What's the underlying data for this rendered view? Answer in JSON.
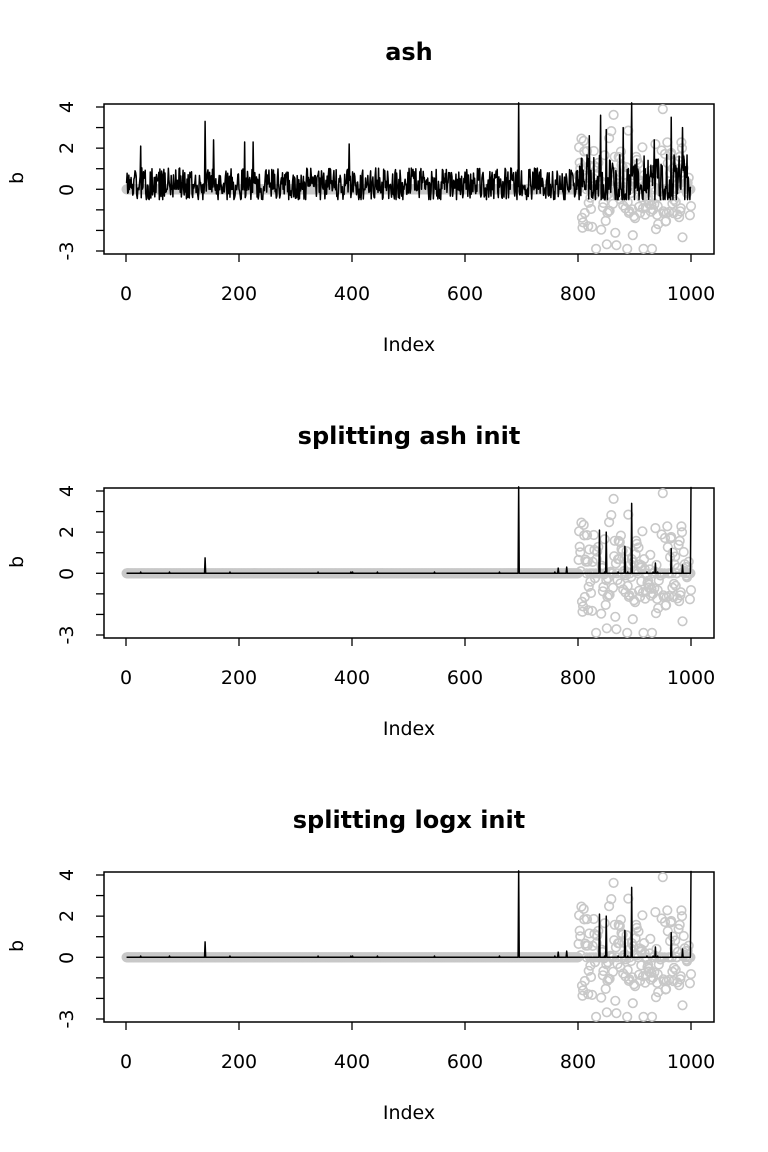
{
  "colors": {
    "line": "#000000",
    "points": "#c8c8c8",
    "frame": "#000000"
  },
  "chart_data": [
    {
      "type": "line",
      "title": "ash",
      "xlabel": "Index",
      "ylabel": "b",
      "xlim": [
        0,
        1000
      ],
      "ylim": [
        -3,
        4
      ],
      "x_ticks": [
        "0",
        "200",
        "400",
        "600",
        "800",
        "1000"
      ],
      "y_ticks": [
        "-3",
        "0",
        "2",
        "4"
      ],
      "line_pattern": "dense-noise",
      "spikes": [
        {
          "x": 140,
          "y": 3.3
        },
        {
          "x": 26,
          "y": 2.1
        },
        {
          "x": 155,
          "y": 2.4
        },
        {
          "x": 210,
          "y": 2.3
        },
        {
          "x": 225,
          "y": 2.3
        },
        {
          "x": 395,
          "y": 2.2
        },
        {
          "x": 695,
          "y": 4.2
        },
        {
          "x": 820,
          "y": 2.6
        },
        {
          "x": 840,
          "y": 3.6
        },
        {
          "x": 850,
          "y": 2.9
        },
        {
          "x": 880,
          "y": 3.0
        },
        {
          "x": 895,
          "y": 4.2
        },
        {
          "x": 935,
          "y": 2.4
        },
        {
          "x": 965,
          "y": 3.5
        },
        {
          "x": 985,
          "y": 3.0
        }
      ],
      "series": [
        {
          "name": "",
          "style": "line",
          "color": "#000000"
        },
        {
          "name": "",
          "style": "points",
          "color": "#c8c8c8"
        }
      ]
    },
    {
      "type": "line",
      "title": "splitting ash init",
      "xlabel": "Index",
      "ylabel": "b",
      "xlim": [
        0,
        1000
      ],
      "ylim": [
        -3,
        4
      ],
      "x_ticks": [
        "0",
        "200",
        "400",
        "600",
        "800",
        "1000"
      ],
      "y_ticks": [
        "-3",
        "0",
        "2",
        "4"
      ],
      "line_pattern": "sparse-spikes",
      "spikes": [
        {
          "x": 140,
          "y": 0.75
        },
        {
          "x": 695,
          "y": 4.2
        },
        {
          "x": 765,
          "y": 0.25
        },
        {
          "x": 780,
          "y": 0.3
        },
        {
          "x": 838,
          "y": 2.1
        },
        {
          "x": 850,
          "y": 2.0
        },
        {
          "x": 883,
          "y": 1.3
        },
        {
          "x": 895,
          "y": 3.4
        },
        {
          "x": 937,
          "y": 0.5
        },
        {
          "x": 965,
          "y": 1.2
        },
        {
          "x": 985,
          "y": 0.4
        },
        {
          "x": 1000,
          "y": 4.2
        }
      ],
      "series": [
        {
          "name": "",
          "style": "line",
          "color": "#000000"
        },
        {
          "name": "",
          "style": "points",
          "color": "#c8c8c8"
        }
      ]
    },
    {
      "type": "line",
      "title": "splitting logx init",
      "xlabel": "Index",
      "ylabel": "b",
      "xlim": [
        0,
        1000
      ],
      "ylim": [
        -3,
        4
      ],
      "x_ticks": [
        "0",
        "200",
        "400",
        "600",
        "800",
        "1000"
      ],
      "y_ticks": [
        "-3",
        "0",
        "2",
        "4"
      ],
      "line_pattern": "sparse-spikes",
      "spikes": [
        {
          "x": 140,
          "y": 0.75
        },
        {
          "x": 695,
          "y": 4.2
        },
        {
          "x": 765,
          "y": 0.25
        },
        {
          "x": 780,
          "y": 0.3
        },
        {
          "x": 838,
          "y": 2.1
        },
        {
          "x": 850,
          "y": 2.0
        },
        {
          "x": 883,
          "y": 1.3
        },
        {
          "x": 895,
          "y": 3.4
        },
        {
          "x": 937,
          "y": 0.5
        },
        {
          "x": 965,
          "y": 1.2
        },
        {
          "x": 985,
          "y": 0.4
        },
        {
          "x": 1000,
          "y": 4.2
        }
      ],
      "series": [
        {
          "name": "",
          "style": "line",
          "color": "#000000"
        },
        {
          "name": "",
          "style": "points",
          "color": "#c8c8c8"
        }
      ]
    }
  ]
}
